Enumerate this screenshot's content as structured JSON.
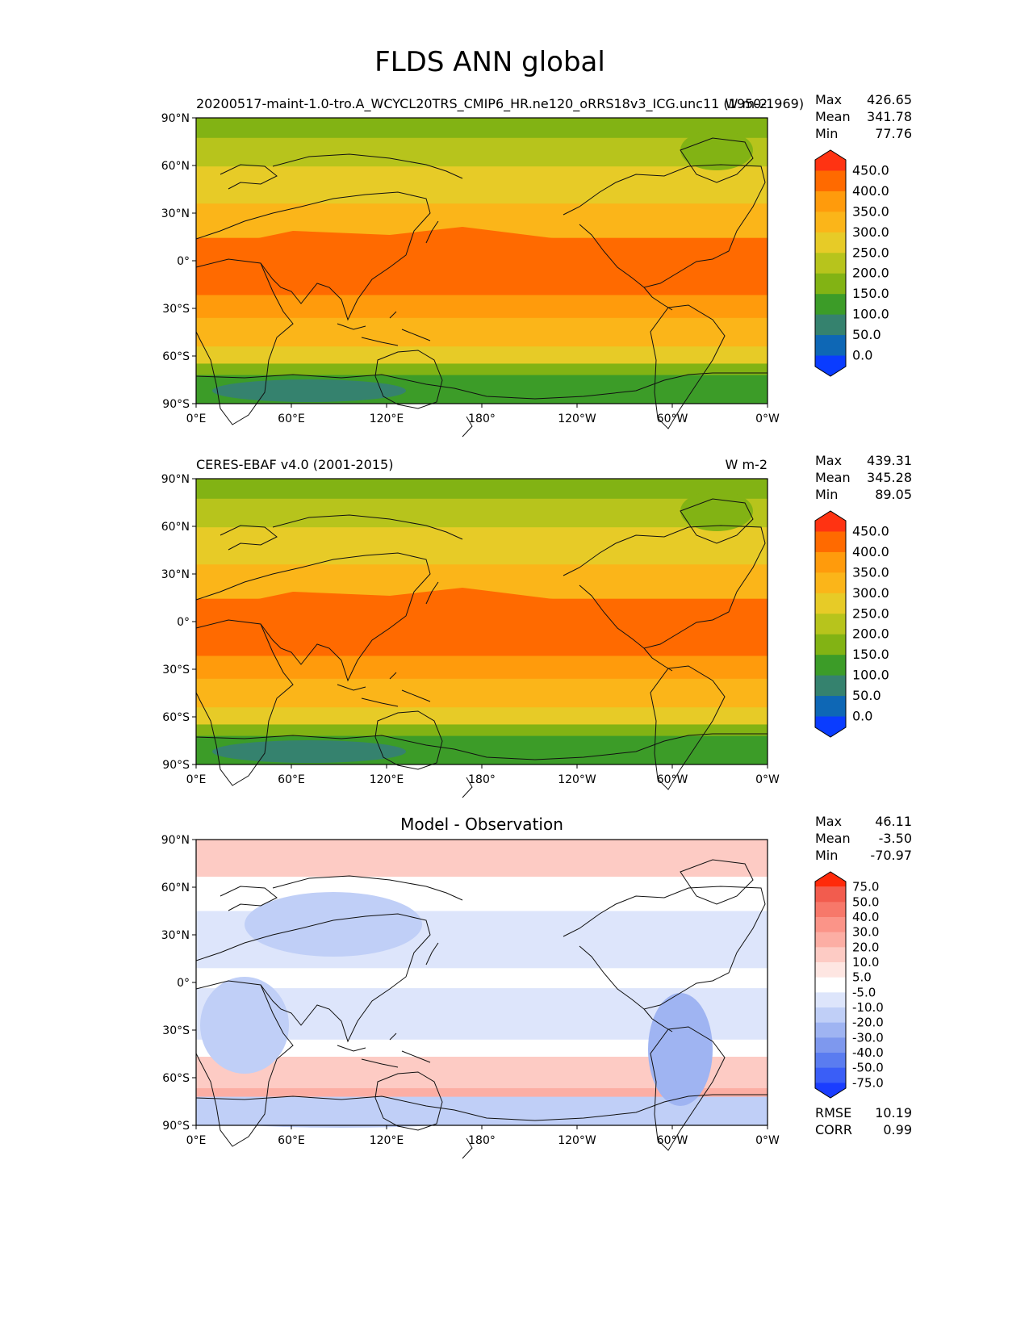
{
  "figure": {
    "title": "FLDS ANN global",
    "lon_ticks": [
      "0°E",
      "60°E",
      "120°E",
      "180°",
      "120°W",
      "60°W",
      "0°W"
    ],
    "lat_ticks": [
      "90°N",
      "60°N",
      "30°N",
      "0°",
      "30°S",
      "60°S",
      "90°S"
    ]
  },
  "panels": [
    {
      "id": "test",
      "left_title": "20200517-maint-1.0-tro.A_WCYCL20TRS_CMIP6_HR.ne120_oRRS18v3_ICG.unc11 (1950-1969)",
      "center_title": "",
      "right_title": "W m-2",
      "stats": [
        {
          "label": "Max",
          "value": "426.65"
        },
        {
          "label": "Mean",
          "value": "341.78"
        },
        {
          "label": "Min",
          "value": "77.76"
        }
      ],
      "colorbar_labels": [
        "450.0",
        "400.0",
        "350.0",
        "300.0",
        "250.0",
        "200.0",
        "150.0",
        "100.0",
        "50.0",
        "0.0"
      ],
      "colorbar_colors": [
        "#ff3312",
        "#ff6a00",
        "#ff9b0c",
        "#fbb519",
        "#e7cb27",
        "#b7c41c",
        "#82b314",
        "#3c9c28",
        "#35826e",
        "#0e67b5",
        "#0a3cff"
      ],
      "footer_stats": []
    },
    {
      "id": "reference",
      "left_title": "CERES-EBAF v4.0 (2001-2015)",
      "center_title": "",
      "right_title": "W m-2",
      "stats": [
        {
          "label": "Max",
          "value": "439.31"
        },
        {
          "label": "Mean",
          "value": "345.28"
        },
        {
          "label": "Min",
          "value": "89.05"
        }
      ],
      "colorbar_labels": [
        "450.0",
        "400.0",
        "350.0",
        "300.0",
        "250.0",
        "200.0",
        "150.0",
        "100.0",
        "50.0",
        "0.0"
      ],
      "colorbar_colors": [
        "#ff3312",
        "#ff6a00",
        "#ff9b0c",
        "#fbb519",
        "#e7cb27",
        "#b7c41c",
        "#82b314",
        "#3c9c28",
        "#35826e",
        "#0e67b5",
        "#0a3cff"
      ],
      "footer_stats": []
    },
    {
      "id": "difference",
      "left_title": "",
      "center_title": "Model - Observation",
      "right_title": "",
      "stats": [
        {
          "label": "Max",
          "value": "46.11"
        },
        {
          "label": "Mean",
          "value": "-3.50"
        },
        {
          "label": "Min",
          "value": "-70.97"
        }
      ],
      "colorbar_labels": [
        "75.0",
        "50.0",
        "40.0",
        "30.0",
        "20.0",
        "10.0",
        "5.0",
        "-5.0",
        "-10.0",
        "-20.0",
        "-30.0",
        "-40.0",
        "-50.0",
        "-75.0"
      ],
      "colorbar_colors": [
        "#ff2a0a",
        "#f25c4e",
        "#f7786a",
        "#fb9488",
        "#fcaea4",
        "#fdcbc4",
        "#fee6e2",
        "#ffffff",
        "#dde5fb",
        "#c0cff7",
        "#9fb4f2",
        "#7e98ee",
        "#5a7cf0",
        "#3a5ef7",
        "#1a3dff"
      ],
      "footer_stats": [
        {
          "label": "RMSE",
          "value": "10.19"
        },
        {
          "label": "CORR",
          "value": "0.99"
        }
      ]
    }
  ]
}
